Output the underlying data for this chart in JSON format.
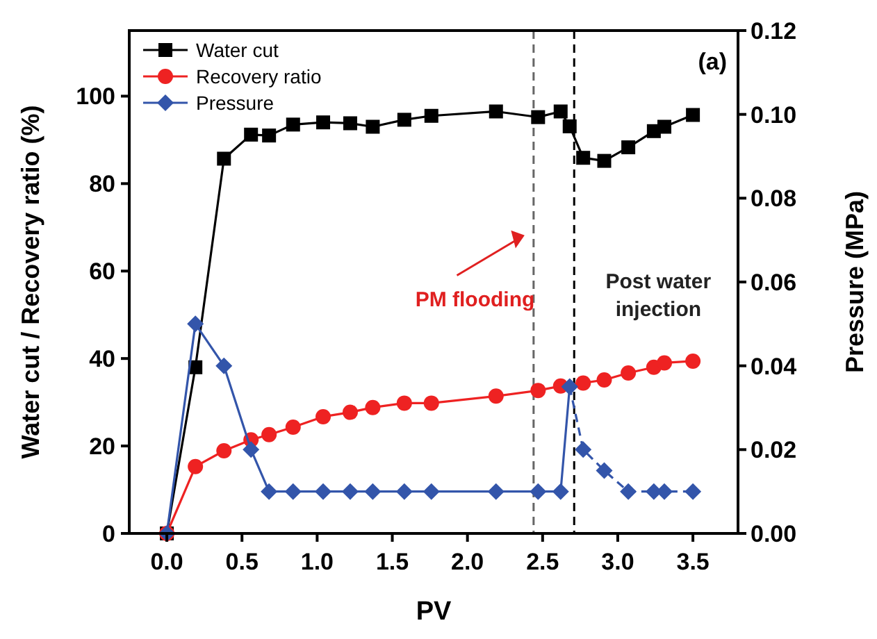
{
  "chart_data": {
    "type": "line",
    "xlabel": "PV",
    "ylabel": "Water cut / Recovery ratio (%)",
    "y2label": "Pressure (MPa)",
    "xlim": [
      -0.25,
      3.8
    ],
    "xticks": [
      {
        "value": 0,
        "label": "0.0"
      },
      {
        "value": 0.5,
        "label": "0.5"
      },
      {
        "value": 1,
        "label": "1.0"
      },
      {
        "value": 1.5,
        "label": "1.5"
      },
      {
        "value": 2,
        "label": "2.0"
      },
      {
        "value": 2.5,
        "label": "2.5"
      },
      {
        "value": 3,
        "label": "3.0"
      },
      {
        "value": 3.5,
        "label": "3.5"
      }
    ],
    "ylim": [
      0,
      115
    ],
    "yticks": [
      0,
      20,
      40,
      60,
      80,
      100
    ],
    "y2lim": [
      0,
      0.12
    ],
    "y2ticks": [
      {
        "value": 0,
        "label": "0.00"
      },
      {
        "value": 0.02,
        "label": "0.02"
      },
      {
        "value": 0.04,
        "label": "0.04"
      },
      {
        "value": 0.06,
        "label": "0.06"
      },
      {
        "value": 0.08,
        "label": "0.08"
      },
      {
        "value": 0.1,
        "label": "0.10"
      },
      {
        "value": 0.12,
        "label": "0.12"
      }
    ],
    "legend": "top left",
    "grid": false,
    "series": [
      {
        "name": "Water cut",
        "color": "#000000",
        "marker": "square",
        "line_style": "solid",
        "x": [
          0,
          0.19,
          0.38,
          0.56,
          0.68,
          0.84,
          1.04,
          1.22,
          1.37,
          1.58,
          1.76,
          2.19,
          2.47,
          2.62,
          2.68,
          2.77,
          2.91,
          3.07,
          3.24,
          3.31,
          3.5
        ],
        "values": [
          0,
          38,
          85.7,
          91.2,
          91,
          93.5,
          94,
          93.8,
          93,
          94.6,
          95.5,
          96.5,
          95.2,
          96.5,
          93.1,
          85.9,
          85.2,
          88.3,
          92,
          93,
          95.7
        ]
      },
      {
        "name": "Recovery ratio",
        "color": "#ee2222",
        "marker": "circle",
        "line_style": "solid",
        "x": [
          0,
          0.19,
          0.38,
          0.56,
          0.68,
          0.84,
          1.04,
          1.22,
          1.37,
          1.58,
          1.76,
          2.19,
          2.47,
          2.62,
          2.77,
          2.91,
          3.07,
          3.24,
          3.31,
          3.5
        ],
        "values": [
          0,
          15.3,
          18.9,
          21.4,
          22.6,
          24.3,
          26.7,
          27.7,
          28.8,
          29.8,
          29.8,
          31.4,
          32.7,
          33.7,
          34.4,
          35.1,
          36.7,
          38,
          39,
          39.4
        ]
      },
      {
        "name": "Pressure",
        "color": "#3355aa",
        "marker": "diamond",
        "line_style": "solid",
        "axis": "y2",
        "x": [
          0,
          0.19,
          0.38,
          0.56,
          0.68,
          0.84,
          1.04,
          1.22,
          1.37,
          1.58,
          1.76,
          2.19,
          2.47,
          2.62,
          2.68
        ],
        "values": [
          0,
          0.05,
          0.04,
          0.02,
          0.01,
          0.01,
          0.01,
          0.01,
          0.01,
          0.01,
          0.01,
          0.01,
          0.01,
          0.01,
          0.035
        ]
      },
      {
        "color": "#3355aa",
        "marker": "diamond",
        "line_style": "dashed",
        "axis": "y2",
        "x": [
          2.68,
          2.77,
          2.91,
          3.07,
          3.24,
          3.31,
          3.5
        ],
        "values": [
          0.035,
          0.02,
          0.015,
          0.01,
          0.01,
          0.01,
          0.01
        ]
      }
    ],
    "ref_lines": [
      {
        "axis": "x",
        "value": 2.44,
        "color": "#666666",
        "line_style": "dashed"
      },
      {
        "axis": "x",
        "value": 2.71,
        "color": "#000000",
        "line_style": "dashed"
      }
    ],
    "annotations": [
      "(a)",
      "PM flooding",
      "Post water injection"
    ]
  }
}
